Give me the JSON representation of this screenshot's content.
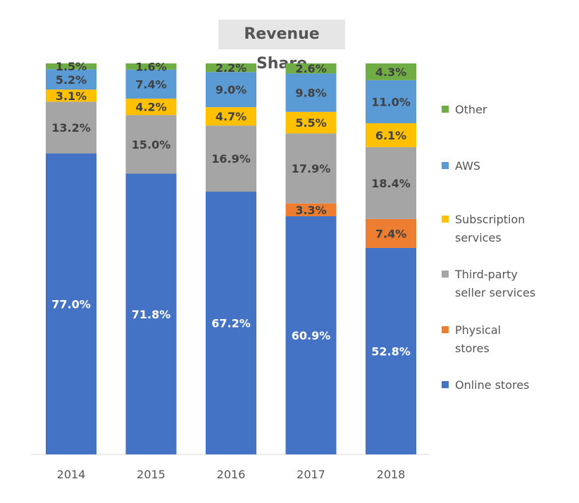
{
  "chart_data": {
    "type": "bar",
    "stacked": true,
    "percent_stacked": true,
    "title": "Revenue Share",
    "categories": [
      "2014",
      "2015",
      "2016",
      "2017",
      "2018"
    ],
    "ylim": [
      0,
      100
    ],
    "grid": false,
    "legend_position": "right",
    "series": [
      {
        "name": "Online stores",
        "color": "#4472c4",
        "label_color": "#ffffff",
        "values": [
          77.0,
          71.8,
          67.2,
          60.9,
          52.8
        ],
        "labels": [
          "77.0%",
          "71.8%",
          "67.2%",
          "60.9%",
          "52.8%"
        ]
      },
      {
        "name": "Physical stores",
        "color": "#ed7d31",
        "label_color": "#404040",
        "values": [
          0,
          0,
          0,
          3.3,
          7.4
        ],
        "labels": [
          "",
          "",
          "",
          "3.3%",
          "7.4%"
        ]
      },
      {
        "name": "Third-party seller services",
        "color": "#a5a5a5",
        "label_color": "#404040",
        "values": [
          13.2,
          15.0,
          16.9,
          17.9,
          18.4
        ],
        "labels": [
          "13.2%",
          "15.0%",
          "16.9%",
          "17.9%",
          "18.4%"
        ]
      },
      {
        "name": "Subscription services",
        "color": "#ffc000",
        "label_color": "#404040",
        "values": [
          3.1,
          4.2,
          4.7,
          5.5,
          6.1
        ],
        "labels": [
          "3.1%",
          "4.2%",
          "4.7%",
          "5.5%",
          "6.1%"
        ]
      },
      {
        "name": "AWS",
        "color": "#5b9bd5",
        "label_color": "#404040",
        "values": [
          5.2,
          7.4,
          9.0,
          9.8,
          11.0
        ],
        "labels": [
          "5.2%",
          "7.4%",
          "9.0%",
          "9.8%",
          "11.0%"
        ]
      },
      {
        "name": "Other",
        "color": "#70ad47",
        "label_color": "#404040",
        "values": [
          1.5,
          1.6,
          2.2,
          2.6,
          4.3
        ],
        "labels": [
          "1.5%",
          "1.6%",
          "2.2%",
          "2.6%",
          "4.3%"
        ]
      }
    ],
    "legend": [
      {
        "series": "Other",
        "lines": [
          "Other"
        ]
      },
      {
        "series": "AWS",
        "lines": [
          "AWS"
        ]
      },
      {
        "series": "Subscription services",
        "lines": [
          "Subscription",
          "services"
        ]
      },
      {
        "series": "Third-party seller services",
        "lines": [
          "Third-party",
          "seller services"
        ]
      },
      {
        "series": "Physical stores",
        "lines": [
          "Physical",
          "stores"
        ]
      },
      {
        "series": "Online stores",
        "lines": [
          "Online stores"
        ]
      }
    ]
  }
}
